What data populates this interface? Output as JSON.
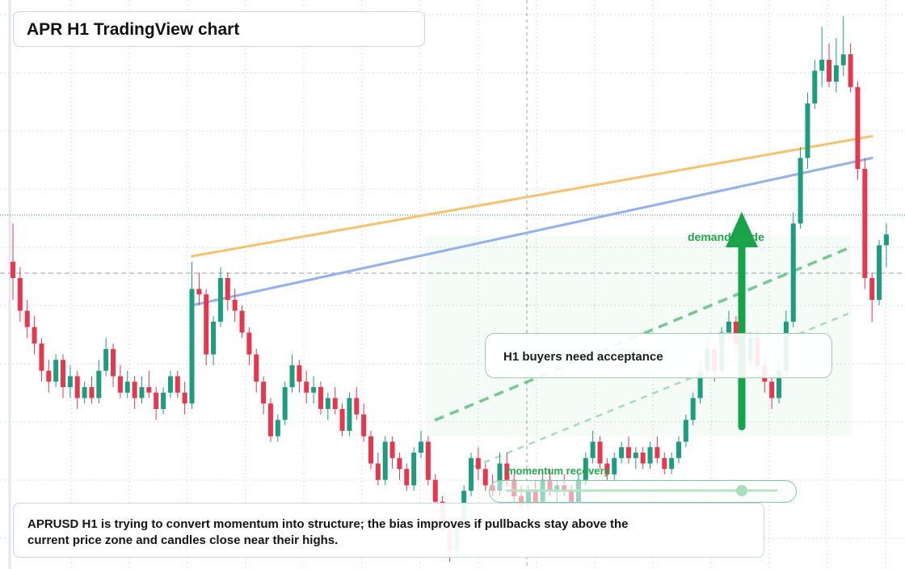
{
  "title": "APR H1 TradingView chart",
  "note": "APRUSD H1 is trying to convert momentum into structure; the bias improves if pullbacks stay above the current price zone and candles close near their highs.",
  "annotations": {
    "callout": "H1 buyers need acceptance",
    "momentum": "momentum recovery",
    "demand": "demand guide"
  },
  "colors": {
    "bull": "#1a9e7e",
    "bear": "#e8364e",
    "orange_line": "#f6c26b",
    "blue_line": "#93b2ec",
    "green_accent": "#16a34a",
    "grid": "#d9dde6"
  },
  "chart_data": {
    "type": "candlestick",
    "symbol": "APRUSD",
    "timeframe": "H1",
    "grid": true,
    "y_domain": [
      0,
      100
    ],
    "candles": [
      [
        55,
        62,
        48,
        52
      ],
      [
        52,
        54,
        44,
        46
      ],
      [
        46,
        48,
        41,
        43
      ],
      [
        43,
        45,
        38,
        40
      ],
      [
        40,
        41,
        33,
        35
      ],
      [
        35,
        37,
        31,
        33
      ],
      [
        33,
        38,
        32,
        37
      ],
      [
        37,
        38,
        30,
        32
      ],
      [
        32,
        36,
        30,
        34
      ],
      [
        34,
        35,
        28,
        30
      ],
      [
        30,
        33,
        29,
        32
      ],
      [
        32,
        34,
        29,
        30
      ],
      [
        30,
        37,
        29,
        35
      ],
      [
        35,
        41,
        34,
        39
      ],
      [
        39,
        40,
        32,
        34
      ],
      [
        34,
        36,
        30,
        31
      ],
      [
        31,
        35,
        30,
        33
      ],
      [
        33,
        34,
        28,
        30
      ],
      [
        30,
        34,
        29,
        32
      ],
      [
        32,
        35,
        30,
        31
      ],
      [
        31,
        32,
        26,
        28
      ],
      [
        28,
        32,
        27,
        31
      ],
      [
        31,
        35,
        30,
        34
      ],
      [
        34,
        35,
        30,
        31
      ],
      [
        31,
        33,
        27,
        29
      ],
      [
        29,
        55,
        28,
        50
      ],
      [
        50,
        53,
        47,
        49
      ],
      [
        49,
        50,
        36,
        38
      ],
      [
        38,
        45,
        36,
        44
      ],
      [
        44,
        54,
        43,
        52
      ],
      [
        52,
        53,
        46,
        48
      ],
      [
        48,
        50,
        44,
        46
      ],
      [
        46,
        47,
        41,
        42
      ],
      [
        42,
        43,
        36,
        38
      ],
      [
        38,
        39,
        31,
        33
      ],
      [
        33,
        34,
        27,
        29
      ],
      [
        29,
        30,
        22,
        23
      ],
      [
        23,
        27,
        22,
        26
      ],
      [
        26,
        33,
        25,
        32
      ],
      [
        32,
        38,
        31,
        36
      ],
      [
        36,
        37,
        31,
        33
      ],
      [
        33,
        35,
        29,
        31
      ],
      [
        31,
        34,
        29,
        32
      ],
      [
        32,
        33,
        27,
        28
      ],
      [
        28,
        31,
        26,
        30
      ],
      [
        30,
        32,
        27,
        28
      ],
      [
        28,
        29,
        23,
        24
      ],
      [
        24,
        31,
        23,
        30
      ],
      [
        30,
        32,
        26,
        27
      ],
      [
        27,
        29,
        22,
        23
      ],
      [
        23,
        24,
        17,
        18
      ],
      [
        18,
        20,
        14,
        15
      ],
      [
        15,
        23,
        14,
        22
      ],
      [
        22,
        23,
        17,
        19
      ],
      [
        19,
        20,
        15,
        17
      ],
      [
        17,
        18,
        13,
        14
      ],
      [
        14,
        21,
        13,
        20
      ],
      [
        20,
        24,
        19,
        22
      ],
      [
        22,
        23,
        14,
        15
      ],
      [
        15,
        16,
        10,
        11
      ],
      [
        11,
        12,
        5,
        6
      ],
      [
        6,
        7,
        0,
        2
      ],
      [
        2,
        8,
        1,
        7
      ],
      [
        7,
        14,
        6,
        13
      ],
      [
        13,
        20,
        12,
        19
      ],
      [
        19,
        21,
        15,
        17
      ],
      [
        17,
        18,
        13,
        14
      ],
      [
        14,
        16,
        12,
        13
      ],
      [
        13,
        20,
        12,
        18
      ],
      [
        18,
        20,
        14,
        15
      ],
      [
        15,
        16,
        11,
        12
      ],
      [
        12,
        14,
        9,
        10
      ],
      [
        10,
        14,
        8,
        13
      ],
      [
        13,
        15,
        10,
        11
      ],
      [
        11,
        16,
        10,
        15
      ],
      [
        15,
        17,
        12,
        13
      ],
      [
        13,
        15,
        11,
        14
      ],
      [
        14,
        16,
        12,
        13
      ],
      [
        13,
        14,
        10,
        11
      ],
      [
        11,
        16,
        10,
        15
      ],
      [
        15,
        20,
        14,
        19
      ],
      [
        19,
        24,
        18,
        22
      ],
      [
        22,
        23,
        17,
        18
      ],
      [
        18,
        19,
        15,
        16
      ],
      [
        16,
        20,
        15,
        19
      ],
      [
        19,
        22,
        18,
        21
      ],
      [
        21,
        23,
        18,
        19
      ],
      [
        19,
        21,
        17,
        20
      ],
      [
        20,
        21,
        17,
        18
      ],
      [
        18,
        22,
        17,
        21
      ],
      [
        21,
        23,
        18,
        19
      ],
      [
        19,
        20,
        16,
        17
      ],
      [
        17,
        20,
        16,
        19
      ],
      [
        19,
        23,
        18,
        22
      ],
      [
        22,
        27,
        21,
        26
      ],
      [
        26,
        31,
        25,
        30
      ],
      [
        30,
        37,
        29,
        35
      ],
      [
        35,
        41,
        34,
        39
      ],
      [
        39,
        40,
        33,
        35
      ],
      [
        35,
        43,
        34,
        42
      ],
      [
        42,
        46,
        40,
        44
      ],
      [
        44,
        45,
        38,
        40
      ],
      [
        40,
        41,
        36,
        37
      ],
      [
        37,
        42,
        36,
        41
      ],
      [
        41,
        42,
        35,
        36
      ],
      [
        36,
        38,
        31,
        33
      ],
      [
        33,
        34,
        28,
        30
      ],
      [
        30,
        37,
        29,
        35
      ],
      [
        35,
        46,
        34,
        44
      ],
      [
        44,
        64,
        43,
        62
      ],
      [
        62,
        76,
        61,
        74
      ],
      [
        74,
        86,
        72,
        84
      ],
      [
        84,
        92,
        83,
        90
      ],
      [
        90,
        98,
        87,
        92
      ],
      [
        92,
        95,
        87,
        88
      ],
      [
        88,
        96,
        86,
        91
      ],
      [
        91,
        100,
        89,
        93
      ],
      [
        93,
        95,
        86,
        87
      ],
      [
        87,
        88,
        70,
        72
      ],
      [
        72,
        74,
        50,
        52
      ],
      [
        52,
        53,
        44,
        48
      ],
      [
        48,
        59,
        47,
        58
      ],
      [
        58,
        62,
        54,
        60
      ]
    ],
    "trendlines": [
      {
        "from": [
          25,
          56
        ],
        "to": [
          120,
          78
        ],
        "color": "orange"
      },
      {
        "from": [
          25,
          47
        ],
        "to": [
          120,
          74
        ],
        "color": "blue"
      }
    ]
  }
}
